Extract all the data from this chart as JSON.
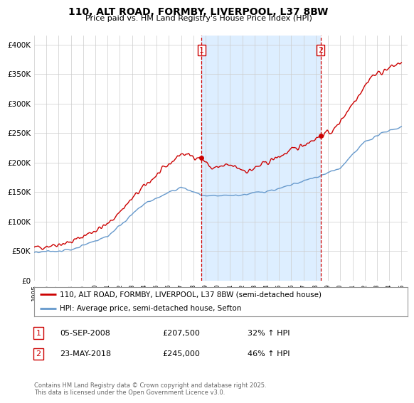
{
  "title": "110, ALT ROAD, FORMBY, LIVERPOOL, L37 8BW",
  "subtitle": "Price paid vs. HM Land Registry's House Price Index (HPI)",
  "ylabel_ticks": [
    "£0",
    "£50K",
    "£100K",
    "£150K",
    "£200K",
    "£250K",
    "£300K",
    "£350K",
    "£400K"
  ],
  "ytick_values": [
    0,
    50000,
    100000,
    150000,
    200000,
    250000,
    300000,
    350000,
    400000
  ],
  "ylim": [
    0,
    415000
  ],
  "xlim_start": 1995.0,
  "xlim_end": 2025.5,
  "xticks": [
    1995,
    1996,
    1997,
    1998,
    1999,
    2000,
    2001,
    2002,
    2003,
    2004,
    2005,
    2006,
    2007,
    2008,
    2009,
    2010,
    2011,
    2012,
    2013,
    2014,
    2015,
    2016,
    2017,
    2018,
    2019,
    2020,
    2021,
    2022,
    2023,
    2024,
    2025
  ],
  "bg_color": "#ffffff",
  "plot_bg_color": "#ffffff",
  "shade_color": "#ddeeff",
  "grid_color": "#cccccc",
  "red_color": "#cc0000",
  "blue_color": "#6699cc",
  "marker1_x": 2008.67,
  "marker1_y": 207500,
  "marker2_x": 2018.39,
  "marker2_y": 245000,
  "shade_x1": 2008.67,
  "shade_x2": 2018.39,
  "legend_label1": "110, ALT ROAD, FORMBY, LIVERPOOL, L37 8BW (semi-detached house)",
  "legend_label2": "HPI: Average price, semi-detached house, Sefton",
  "annot1_date": "05-SEP-2008",
  "annot1_price": "£207,500",
  "annot1_hpi": "32% ↑ HPI",
  "annot2_date": "23-MAY-2018",
  "annot2_price": "£245,000",
  "annot2_hpi": "46% ↑ HPI",
  "footer": "Contains HM Land Registry data © Crown copyright and database right 2025.\nThis data is licensed under the Open Government Licence v3.0."
}
